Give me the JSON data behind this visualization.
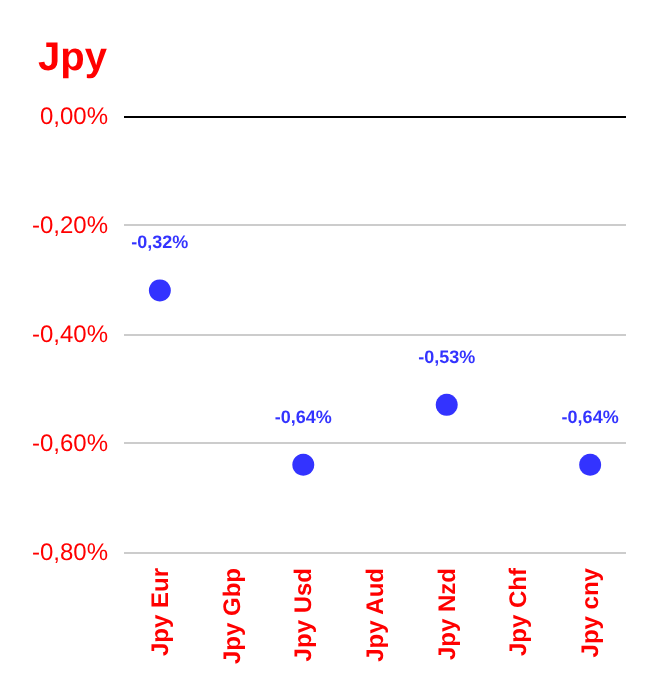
{
  "chart_data": {
    "type": "scatter",
    "title": "Jpy",
    "categories": [
      "Jpy Eur",
      "Jpy Gbp",
      "Jpy Usd",
      "Jpy Aud",
      "Jpy Nzd",
      "Jpy Chf",
      "Jpy cny"
    ],
    "series": [
      {
        "color": "#0000ff",
        "values": [
          -0.32,
          null,
          -0.64,
          null,
          -0.53,
          null,
          -0.64
        ],
        "value_labels": [
          "-0,32%",
          null,
          "-0,64%",
          null,
          "-0,53%",
          null,
          "-0,64%"
        ]
      }
    ],
    "ylim": [
      -0.8,
      0
    ],
    "yticks": [
      {
        "value": -0.8,
        "label": "-0,80%"
      },
      {
        "value": -0.6,
        "label": "-0,60%"
      },
      {
        "value": -0.4,
        "label": "-0,40%"
      },
      {
        "value": -0.2,
        "label": "-0,20%"
      },
      {
        "value": 0,
        "label": "0,00%"
      }
    ],
    "grid": "y",
    "marker": "circle"
  }
}
